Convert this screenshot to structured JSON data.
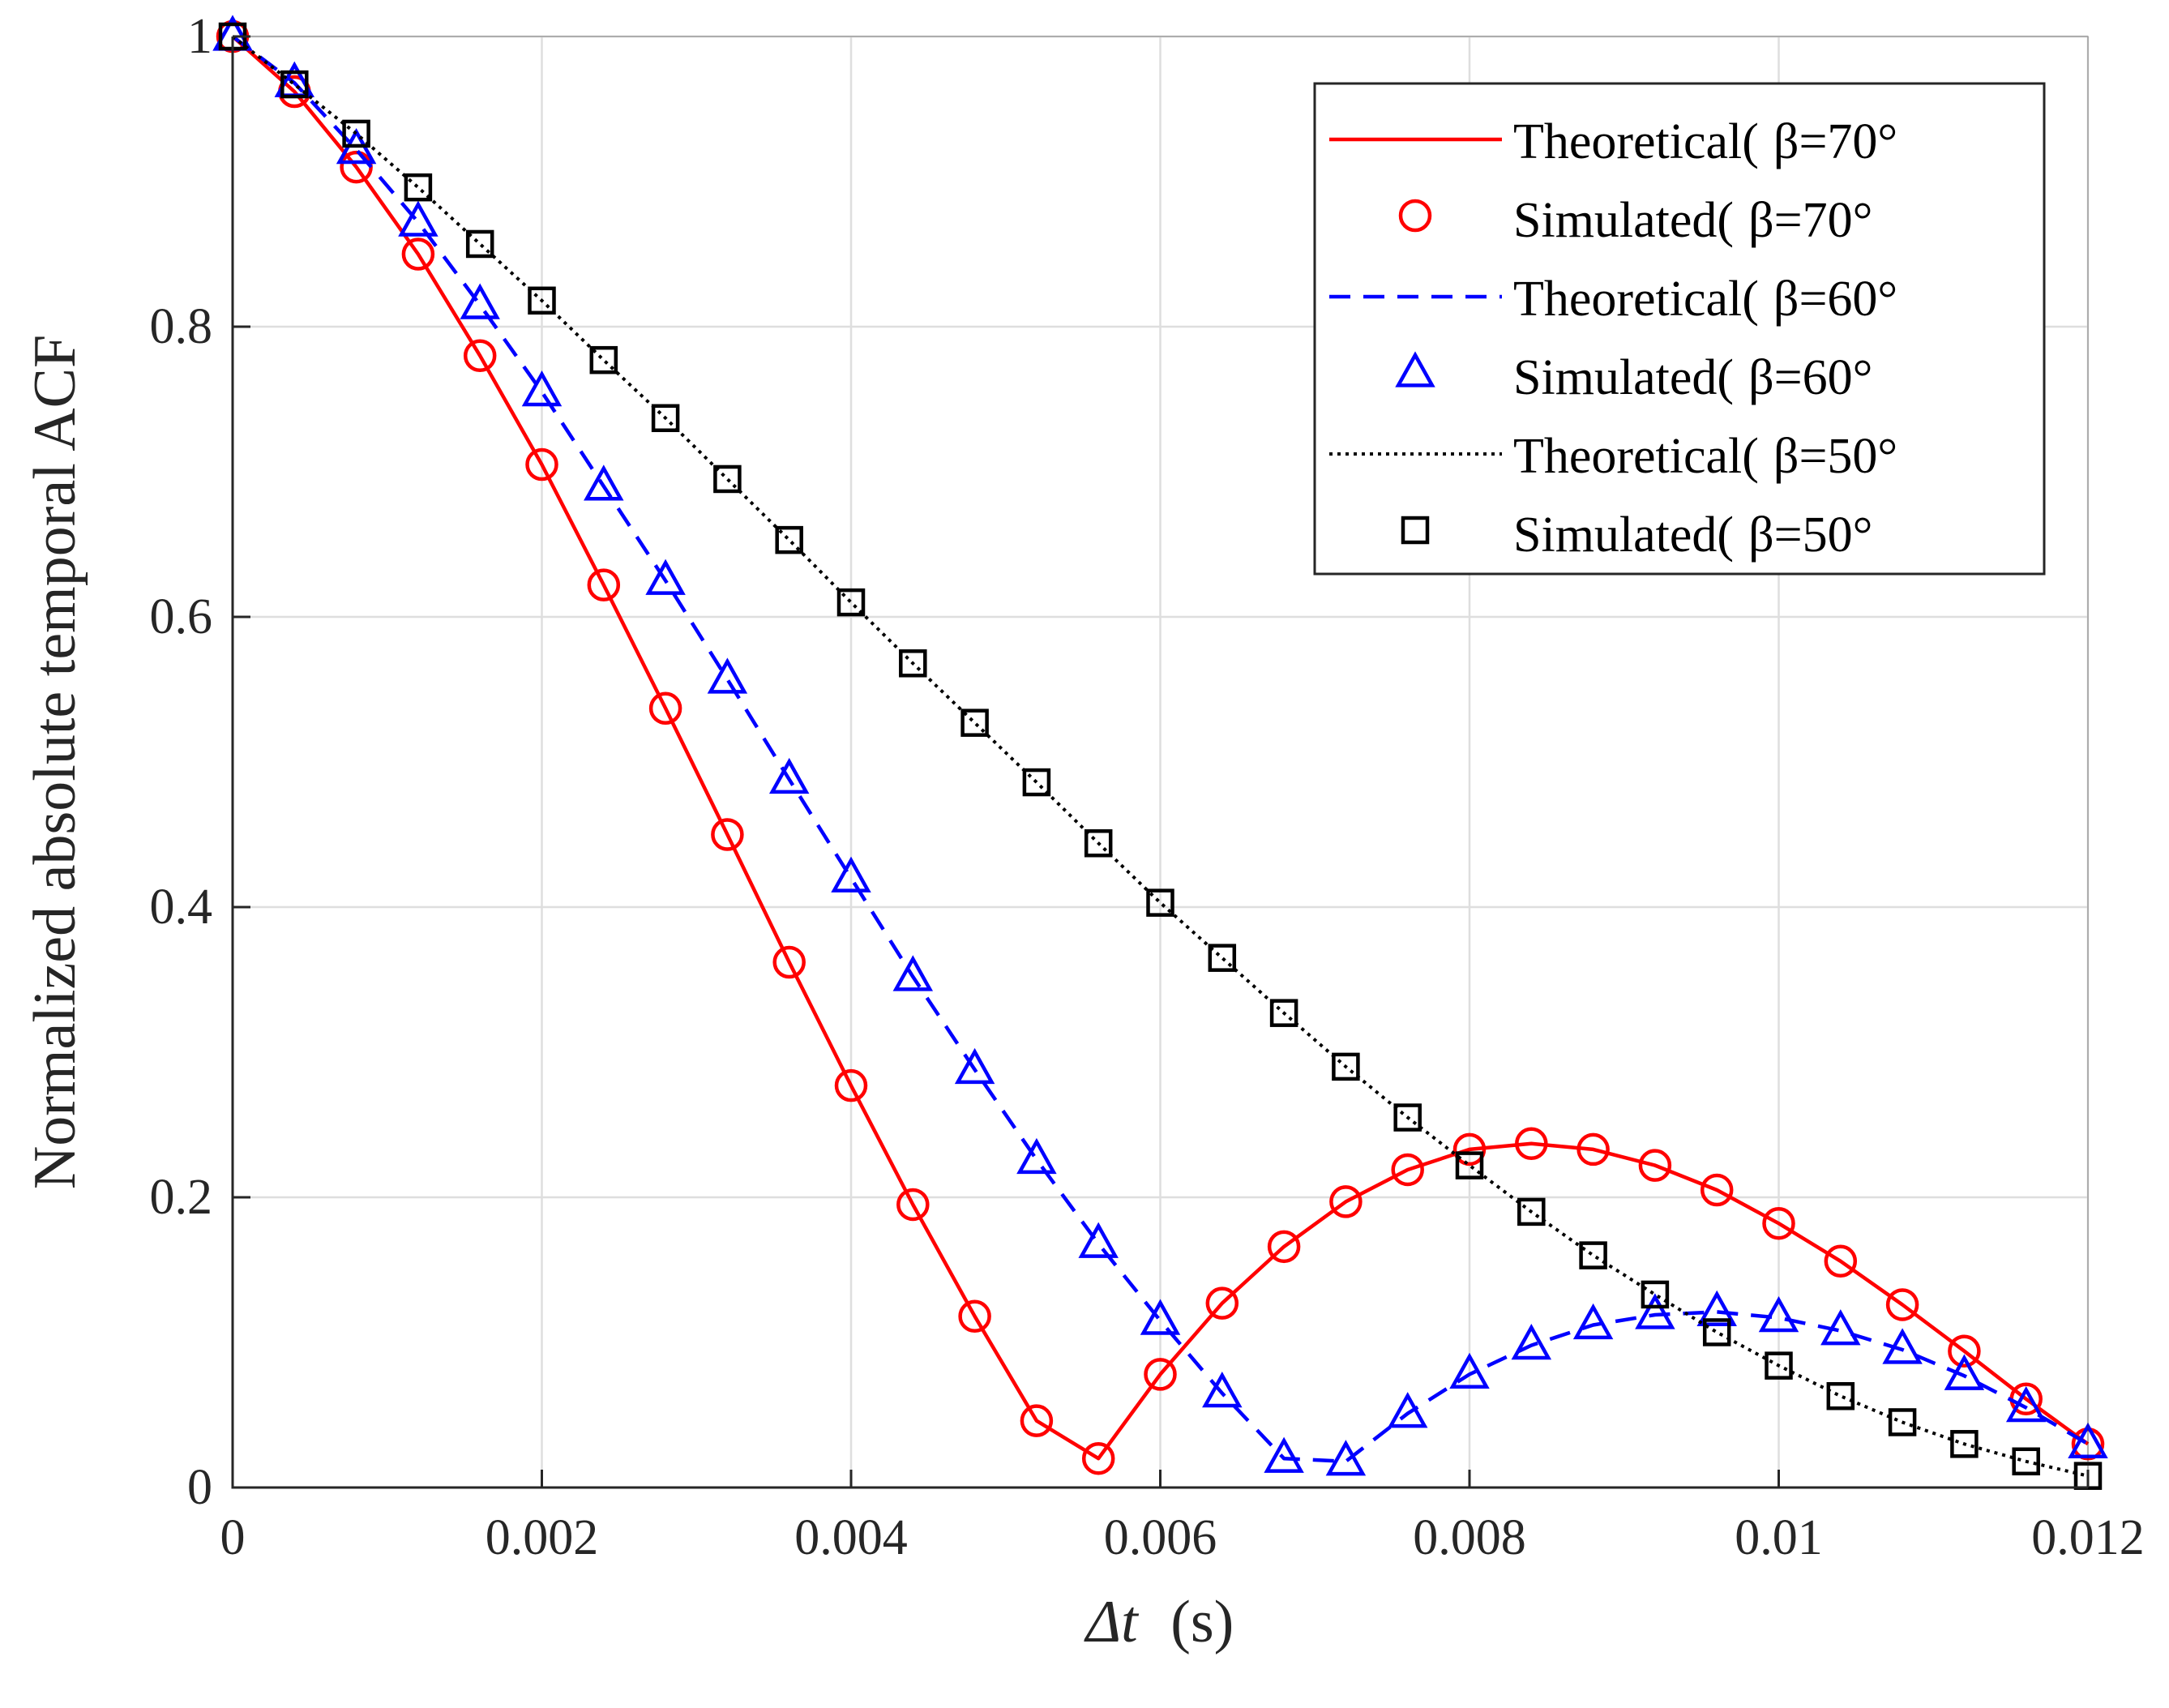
{
  "chart_data": {
    "type": "line",
    "title": "",
    "xlabel_symbol": "Δt",
    "xlabel_unit": "(s)",
    "ylabel": "Normalized absolute temporal ACF",
    "xlim": [
      0,
      0.012
    ],
    "ylim": [
      0,
      1
    ],
    "xticks": [
      0,
      0.002,
      0.004,
      0.006,
      0.008,
      0.01,
      0.012
    ],
    "xtick_labels": [
      "0",
      "0.002",
      "0.004",
      "0.006",
      "0.008",
      "0.01",
      "0.012"
    ],
    "yticks": [
      0,
      0.2,
      0.4,
      0.6,
      0.8,
      1
    ],
    "ytick_labels": [
      "0",
      "0.2",
      "0.4",
      "0.6",
      "0.8",
      "1"
    ],
    "grid": true,
    "legend_position": "top-right",
    "x": [
      0,
      0.0004,
      0.0008,
      0.0012,
      0.0016,
      0.002,
      0.0024,
      0.0028,
      0.0032,
      0.0036,
      0.004,
      0.0044,
      0.0048,
      0.0052,
      0.0056,
      0.006,
      0.0064,
      0.0068,
      0.0072,
      0.0076,
      0.008,
      0.0084,
      0.0088,
      0.0092,
      0.0096,
      0.01,
      0.0104,
      0.0108,
      0.0112,
      0.0116,
      0.012
    ],
    "series": [
      {
        "name": "Theoretical(",
        "beta_label": "β=70°",
        "kind": "line",
        "style": "solid",
        "color": "#ff0000",
        "values": [
          1.0,
          0.962,
          0.91,
          0.85,
          0.78,
          0.705,
          0.622,
          0.537,
          0.45,
          0.362,
          0.277,
          0.195,
          0.118,
          0.046,
          0.02,
          0.078,
          0.127,
          0.166,
          0.197,
          0.219,
          0.233,
          0.237,
          0.233,
          0.222,
          0.205,
          0.182,
          0.156,
          0.126,
          0.094,
          0.061,
          0.03
        ]
      },
      {
        "name": "Simulated(",
        "beta_label": "β=70°",
        "kind": "markers",
        "marker": "circle",
        "color": "#ff0000",
        "values": [
          1.0,
          0.962,
          0.91,
          0.85,
          0.78,
          0.705,
          0.622,
          0.537,
          0.45,
          0.362,
          0.277,
          0.195,
          0.118,
          0.046,
          0.02,
          0.078,
          0.127,
          0.166,
          0.197,
          0.219,
          0.233,
          0.237,
          0.233,
          0.222,
          0.205,
          0.182,
          0.156,
          0.126,
          0.094,
          0.061,
          0.03
        ]
      },
      {
        "name": "Theoretical(",
        "beta_label": "β=60°",
        "kind": "line",
        "style": "dashed",
        "color": "#0000ff",
        "values": [
          1.0,
          0.968,
          0.922,
          0.872,
          0.815,
          0.755,
          0.69,
          0.625,
          0.557,
          0.488,
          0.42,
          0.352,
          0.288,
          0.226,
          0.168,
          0.115,
          0.065,
          0.02,
          0.018,
          0.051,
          0.078,
          0.098,
          0.112,
          0.119,
          0.121,
          0.117,
          0.108,
          0.095,
          0.077,
          0.055,
          0.03
        ]
      },
      {
        "name": "Simulated(",
        "beta_label": "β=60°",
        "kind": "markers",
        "marker": "triangle",
        "color": "#0000ff",
        "values": [
          1.0,
          0.968,
          0.922,
          0.872,
          0.815,
          0.755,
          0.69,
          0.625,
          0.557,
          0.488,
          0.42,
          0.352,
          0.288,
          0.226,
          0.168,
          0.115,
          0.065,
          0.02,
          0.018,
          0.051,
          0.078,
          0.098,
          0.112,
          0.119,
          0.121,
          0.117,
          0.108,
          0.095,
          0.077,
          0.055,
          0.03
        ]
      },
      {
        "name": "Theoretical(",
        "beta_label": "β=50°",
        "kind": "line",
        "style": "dotted",
        "color": "#000000",
        "values": [
          1.0,
          0.967,
          0.933,
          0.896,
          0.857,
          0.818,
          0.777,
          0.737,
          0.695,
          0.653,
          0.61,
          0.568,
          0.527,
          0.486,
          0.444,
          0.403,
          0.365,
          0.327,
          0.29,
          0.255,
          0.222,
          0.19,
          0.16,
          0.133,
          0.107,
          0.084,
          0.063,
          0.045,
          0.03,
          0.018,
          0.008
        ]
      },
      {
        "name": "Simulated(",
        "beta_label": "β=50°",
        "kind": "markers",
        "marker": "square",
        "color": "#000000",
        "values": [
          1.0,
          0.967,
          0.933,
          0.896,
          0.857,
          0.818,
          0.777,
          0.737,
          0.695,
          0.653,
          0.61,
          0.568,
          0.527,
          0.486,
          0.444,
          0.403,
          0.365,
          0.327,
          0.29,
          0.255,
          0.222,
          0.19,
          0.16,
          0.133,
          0.107,
          0.084,
          0.063,
          0.045,
          0.03,
          0.018,
          0.008
        ]
      }
    ]
  }
}
